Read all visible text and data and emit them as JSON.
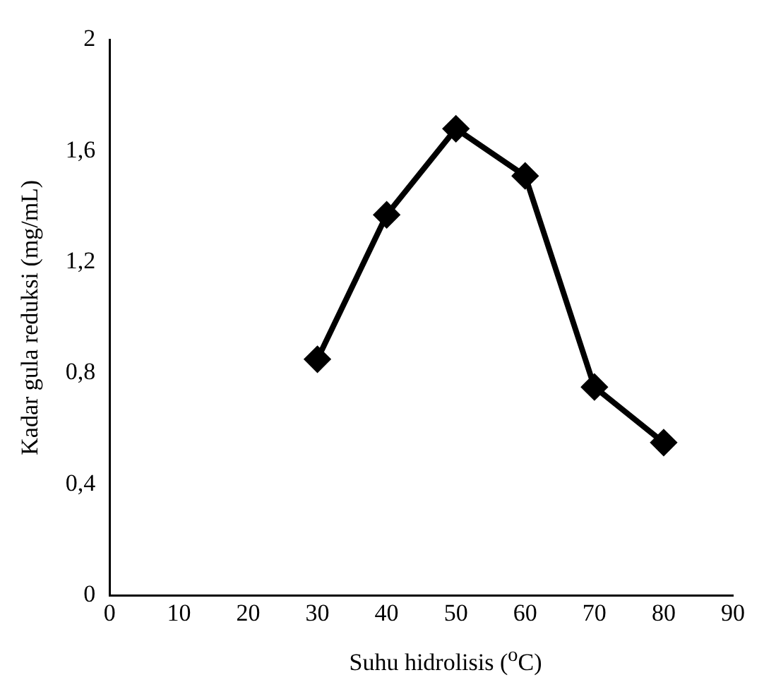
{
  "chart_data": {
    "type": "line",
    "xlabel": "Suhu hidrolisis ($^{o}$C)",
    "ylabel": "Kadar gula reduksi (mg/mL)",
    "x": [
      30,
      40,
      50,
      60,
      70,
      80
    ],
    "series": [
      {
        "color": "#000000",
        "values": [
          0.85,
          1.37,
          1.68,
          1.51,
          0.75,
          0.55
        ]
      }
    ],
    "xlim": [
      0,
      90
    ],
    "xticks": [
      0,
      10,
      20,
      30,
      40,
      50,
      60,
      70,
      80,
      90
    ],
    "ylim": [
      0,
      2
    ],
    "yticks": [
      0,
      {
        "value": 0.4,
        "label": "0,4"
      },
      {
        "value": 0.8,
        "label": "0,8"
      },
      {
        "value": 1.2,
        "label": "1,2"
      },
      {
        "value": 1.6,
        "label": "1,6"
      },
      2
    ],
    "grid": false,
    "legend": false,
    "marker": "diamond",
    "line_style": "solid"
  }
}
